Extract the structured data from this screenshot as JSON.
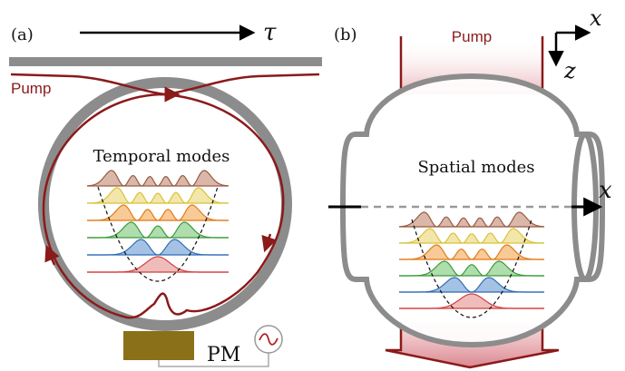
{
  "panel_a": {
    "label": "(a)",
    "axis_label": "τ",
    "pump_label": "Pump",
    "title": "Temporal modes",
    "modulator_label": "PM"
  },
  "panel_b": {
    "label": "(b)",
    "pump_label": "Pump",
    "title": "Spatial modes",
    "axis_x_top": "x",
    "axis_z_top": "z",
    "axis_x_side": "x"
  },
  "mode_colors": [
    "#e8a0a0",
    "#7fa8d8",
    "#8fcf8a",
    "#f5b36b",
    "#eedc86",
    "#c99a86"
  ],
  "mode_line_colors": [
    "#d43c3c",
    "#2f6db8",
    "#3a9a3a",
    "#e07b16",
    "#d9c23a",
    "#9a5a40"
  ],
  "colors": {
    "pump": "#8b1a1a",
    "resonator": "#8c8c8c",
    "modulator": "#8a7018"
  }
}
